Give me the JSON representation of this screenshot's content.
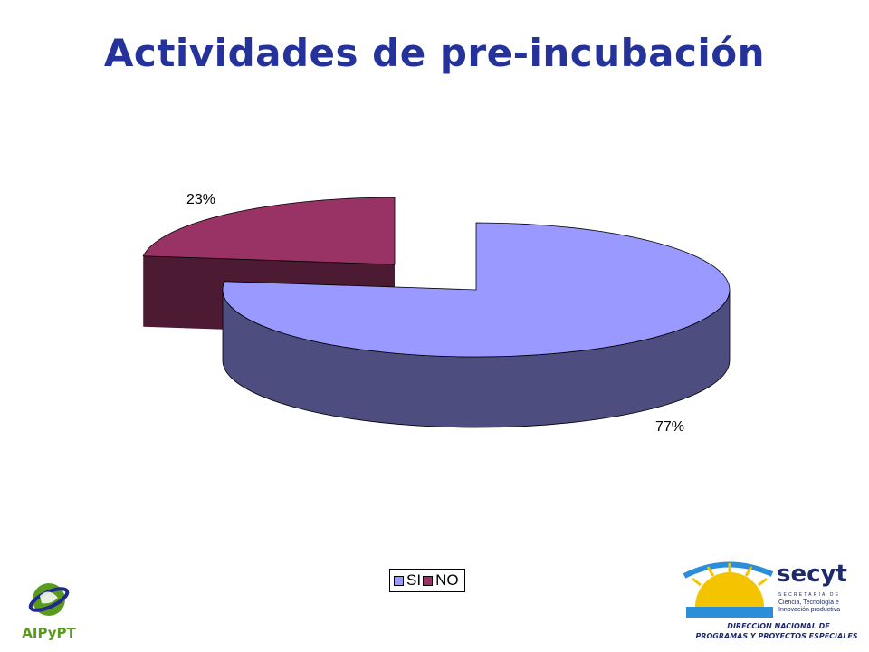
{
  "slide": {
    "title": "Actividades de pre-incubación"
  },
  "chart_data": {
    "type": "pie",
    "title": "",
    "categories": [
      "SI",
      "NO"
    ],
    "values": [
      77,
      23
    ],
    "data_labels": [
      "77%",
      "23%"
    ],
    "legend_position": "bottom",
    "style": "3d-exploded",
    "colors": {
      "SI": "#9999ff",
      "NO": "#993366"
    }
  },
  "logos": {
    "left": {
      "text": "AIPyPT",
      "icon": "aipypt-globe-icon"
    },
    "right": {
      "brand": "secyt",
      "sub_label": "SECRETARIA DE",
      "line1": "Ciencia, Tecnología e",
      "line2": "Innovación productiva",
      "department_line1": "DIRECCION NACIONAL DE",
      "department_line2": "PROGRAMAS Y PROYECTOS ESPECIALES",
      "icon": "sunrise-icon"
    }
  },
  "colors": {
    "title": "#24329a",
    "logo_green": "#5a9a1e"
  }
}
